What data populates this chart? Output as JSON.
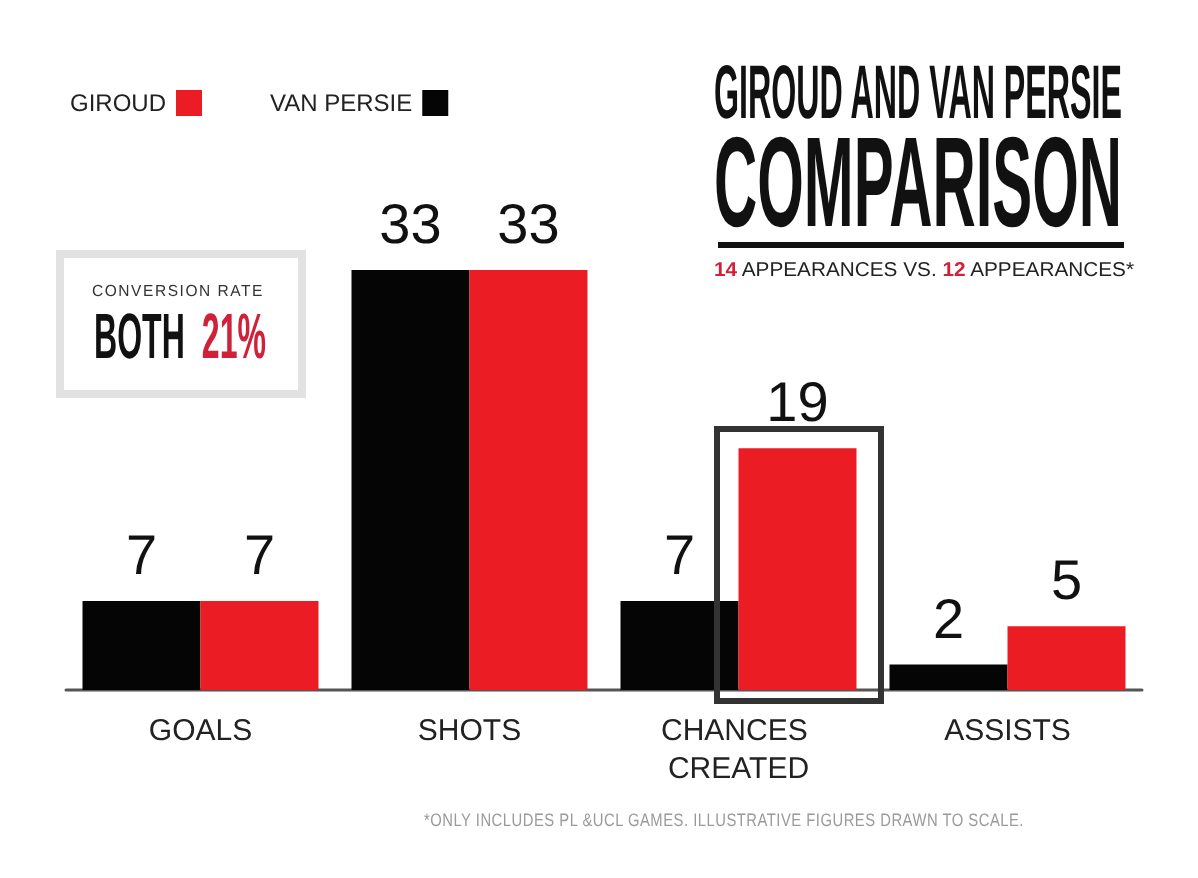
{
  "chart_data": {
    "type": "bar",
    "title": "GIROUD AND VAN PERSIE COMPARISON",
    "subtitle": "14 APPEARANCES VS. 12 APPEARANCES*",
    "categories": [
      "GOALS",
      "SHOTS",
      "CHANCES CREATED",
      "ASSISTS"
    ],
    "series": [
      {
        "name": "VAN PERSIE",
        "color": "#050505",
        "values": [
          7,
          33,
          7,
          2
        ]
      },
      {
        "name": "GIROUD",
        "color": "#ec1c24",
        "values": [
          7,
          33,
          19,
          5
        ]
      }
    ],
    "data_labels": true,
    "legend": "top left",
    "tick_labels": "x",
    "annotations": [
      "CONVERSION RATE",
      "BOTH 21%",
      "*ONLY INCLUDES PL &UCL GAMES. ILLUSTRATIVE FIGURES DRAWN TO SCALE."
    ]
  }
}
